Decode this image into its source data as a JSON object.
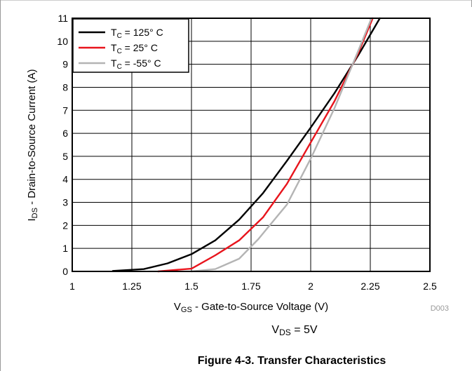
{
  "chart_data": {
    "type": "line",
    "xlabel": {
      "main": "V",
      "sub": "GS",
      "rest": " - Gate-to-Source Voltage (V)"
    },
    "ylabel": {
      "main": "I",
      "sub": "DS",
      "rest": " - Drain-to-Source Current (A)"
    },
    "xlim": [
      1,
      2.5
    ],
    "ylim": [
      0,
      11
    ],
    "x_ticks": [
      1,
      1.25,
      1.5,
      1.75,
      2,
      2.25,
      2.5
    ],
    "x_tick_labels": [
      "1",
      "1.25",
      "1.5",
      "1.75",
      "2",
      "2.25",
      "2.5"
    ],
    "y_ticks": [
      0,
      1,
      2,
      3,
      4,
      5,
      6,
      7,
      8,
      9,
      10,
      11
    ],
    "y_tick_labels": [
      "0",
      "1",
      "2",
      "3",
      "4",
      "5",
      "6",
      "7",
      "8",
      "9",
      "10",
      "11"
    ],
    "grid": true,
    "legend_position": "top-left",
    "series": [
      {
        "name": {
          "main": "T",
          "sub": "C",
          "rest": " = 125° C"
        },
        "color": "#000000",
        "x": [
          1.17,
          1.3,
          1.4,
          1.5,
          1.6,
          1.7,
          1.8,
          1.9,
          2.0,
          2.1,
          2.2,
          2.29
        ],
        "y": [
          0.02,
          0.1,
          0.35,
          0.75,
          1.35,
          2.25,
          3.4,
          4.8,
          6.25,
          7.75,
          9.4,
          11.0
        ]
      },
      {
        "name": {
          "main": "T",
          "sub": "C",
          "rest": " = 25° C"
        },
        "color": "#e8141c",
        "x": [
          1.36,
          1.45,
          1.5,
          1.6,
          1.7,
          1.8,
          1.9,
          2.0,
          2.1,
          2.2,
          2.26
        ],
        "y": [
          0.0,
          0.08,
          0.12,
          0.7,
          1.35,
          2.35,
          3.8,
          5.6,
          7.4,
          9.5,
          11.0
        ]
      },
      {
        "name": {
          "main": "T",
          "sub": "C",
          "rest": " = -55° C"
        },
        "color": "#b4b4b4",
        "x": [
          1.5,
          1.6,
          1.7,
          1.78,
          1.9,
          2.0,
          2.1,
          2.2,
          2.255
        ],
        "y": [
          0.0,
          0.1,
          0.55,
          1.4,
          2.9,
          4.9,
          7.1,
          9.6,
          11.0
        ]
      }
    ],
    "annotation_code": "D003"
  },
  "note": {
    "main": "V",
    "sub": "DS",
    "rest": " = 5V"
  },
  "caption": "Figure 4-3. Transfer Characteristics"
}
